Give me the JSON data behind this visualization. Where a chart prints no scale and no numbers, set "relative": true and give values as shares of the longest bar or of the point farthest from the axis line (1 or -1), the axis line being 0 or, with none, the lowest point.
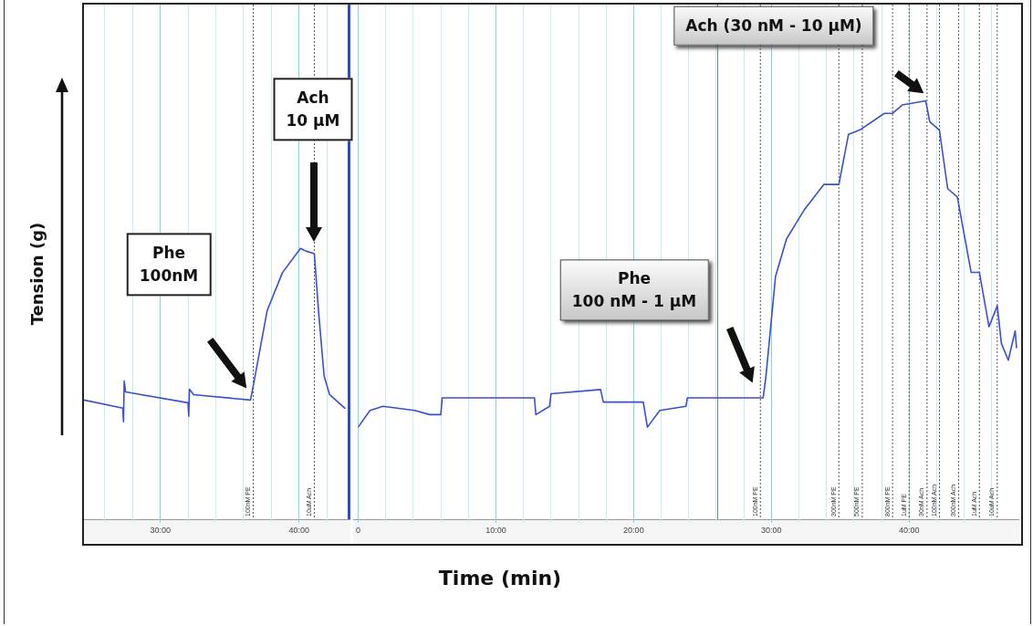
{
  "chart_data": [
    {
      "type": "line",
      "relative": true,
      "ylabel": "Tension (g)",
      "xlim": [
        24.5,
        43.7
      ],
      "xticks": [
        {
          "value": 26,
          "label": null
        },
        {
          "value": 28,
          "label": null
        },
        {
          "value": 30,
          "label": "30:00"
        },
        {
          "value": 32,
          "label": null
        },
        {
          "value": 34,
          "label": null
        },
        {
          "value": 36,
          "label": null
        },
        {
          "value": 38,
          "label": null
        },
        {
          "value": 40,
          "label": "40:00"
        },
        {
          "value": 42,
          "label": null
        }
      ],
      "grid": "x",
      "marker": "none",
      "line_style": "solid",
      "x": [
        24.5,
        27.3,
        27.35,
        27.4,
        27.5,
        32.0,
        32.05,
        32.1,
        32.4,
        36.5,
        36.8,
        37.7,
        38.8,
        40.1,
        40.5,
        41.1,
        41.4,
        41.8,
        42.2,
        43.3
      ],
      "series": [
        {
          "color": "#3a4fd0",
          "values": [
            0.44,
            0.41,
            0.36,
            0.51,
            0.47,
            0.43,
            0.38,
            0.48,
            0.46,
            0.44,
            0.52,
            0.77,
            0.91,
            1.0,
            0.99,
            0.98,
            0.77,
            0.53,
            0.46,
            0.41
          ]
        }
      ],
      "ref_lines": [
        {
          "axis": "x",
          "value": 36.7,
          "label": "100nM PE",
          "color": "#555555",
          "line_style": "dotted"
        },
        {
          "axis": "x",
          "value": 41.1,
          "label": "10uM Ach",
          "color": "#555555",
          "line_style": "dotted"
        }
      ],
      "annotations": [
        "Phe\n100nM",
        "Ach\n10 μM"
      ]
    },
    {
      "type": "line",
      "relative": true,
      "xlabel": "Time (min)",
      "xlim": [
        0,
        48
      ],
      "xticks": [
        {
          "value": 0,
          "label": "0"
        },
        {
          "value": 2,
          "label": null
        },
        {
          "value": 4,
          "label": null
        },
        {
          "value": 6,
          "label": null
        },
        {
          "value": 8,
          "label": null
        },
        {
          "value": 10,
          "label": "10:00"
        },
        {
          "value": 12,
          "label": null
        },
        {
          "value": 14,
          "label": null
        },
        {
          "value": 16,
          "label": null
        },
        {
          "value": 18,
          "label": null
        },
        {
          "value": 20,
          "label": "20:00"
        },
        {
          "value": 22,
          "label": null
        },
        {
          "value": 24,
          "label": null
        },
        {
          "value": 26,
          "label": null
        },
        {
          "value": 28,
          "label": null
        },
        {
          "value": 30,
          "label": "30:00"
        },
        {
          "value": 32,
          "label": null
        },
        {
          "value": 34,
          "label": null
        },
        {
          "value": 36,
          "label": null
        },
        {
          "value": 38,
          "label": null
        },
        {
          "value": 40,
          "label": "40:00"
        },
        {
          "value": 42,
          "label": null
        },
        {
          "value": 44,
          "label": null
        },
        {
          "value": 46,
          "label": null
        }
      ],
      "grid": "x",
      "marker": "none",
      "line_style": "solid",
      "x": [
        0,
        0.86,
        1.8,
        4.1,
        5.2,
        6.0,
        6.1,
        7.4,
        12.8,
        12.9,
        13.9,
        14.0,
        17.6,
        17.8,
        20.7,
        21.0,
        21.9,
        23.8,
        23.9,
        29.1,
        29.4,
        29.6,
        30.3,
        31.1,
        32.4,
        33.8,
        34.9,
        35.6,
        36.4,
        38.2,
        38.8,
        39.5,
        41.2,
        41.5,
        42.2,
        42.8,
        43.5,
        44.5,
        45.1,
        45.8,
        46.4,
        46.7,
        47.2,
        47.7,
        47.8
      ],
      "series": [
        {
          "color": "#3a4fd0",
          "values": [
            0.22,
            0.26,
            0.27,
            0.26,
            0.25,
            0.25,
            0.29,
            0.29,
            0.29,
            0.25,
            0.27,
            0.3,
            0.31,
            0.28,
            0.28,
            0.22,
            0.26,
            0.27,
            0.29,
            0.29,
            0.29,
            0.34,
            0.58,
            0.67,
            0.74,
            0.8,
            0.8,
            0.92,
            0.93,
            0.97,
            0.97,
            0.99,
            1.0,
            0.95,
            0.93,
            0.79,
            0.77,
            0.59,
            0.59,
            0.46,
            0.51,
            0.42,
            0.38,
            0.45,
            0.41
          ]
        }
      ],
      "ref_lines": [
        {
          "axis": "x",
          "value": 26.1,
          "color": "#777777",
          "line_style": "solid"
        },
        {
          "axis": "x",
          "value": 29.2,
          "label": "100nM PE",
          "color": "#555555",
          "line_style": "dotted"
        },
        {
          "axis": "x",
          "value": 34.9,
          "label": "300nM PE",
          "color": "#555555",
          "line_style": "dotted"
        },
        {
          "axis": "x",
          "value": 36.6,
          "label": "500nM PE",
          "color": "#555555",
          "line_style": "dotted"
        },
        {
          "axis": "x",
          "value": 38.8,
          "label": "800nM PE",
          "color": "#555555",
          "line_style": "dotted"
        },
        {
          "axis": "x",
          "value": 40.0,
          "label": "1uM PE",
          "color": "#555555",
          "line_style": "dotted"
        },
        {
          "axis": "x",
          "value": 41.3,
          "label": "30nM Ach",
          "color": "#555555",
          "line_style": "dotted"
        },
        {
          "axis": "x",
          "value": 42.2,
          "label": "100nM Ach",
          "color": "#555555",
          "line_style": "dotted"
        },
        {
          "axis": "x",
          "value": 43.6,
          "label": "300nM Ach",
          "color": "#555555",
          "line_style": "dotted"
        },
        {
          "axis": "x",
          "value": 45.1,
          "label": "1uM Ach",
          "color": "#555555",
          "line_style": "dotted"
        },
        {
          "axis": "x",
          "value": 46.4,
          "label": "10uM Ach",
          "color": "#555555",
          "line_style": "dotted"
        }
      ],
      "annotations": [
        "Phe\n100 nM - 1 μM",
        "Ach (30 nM - 10 μM)"
      ]
    }
  ]
}
